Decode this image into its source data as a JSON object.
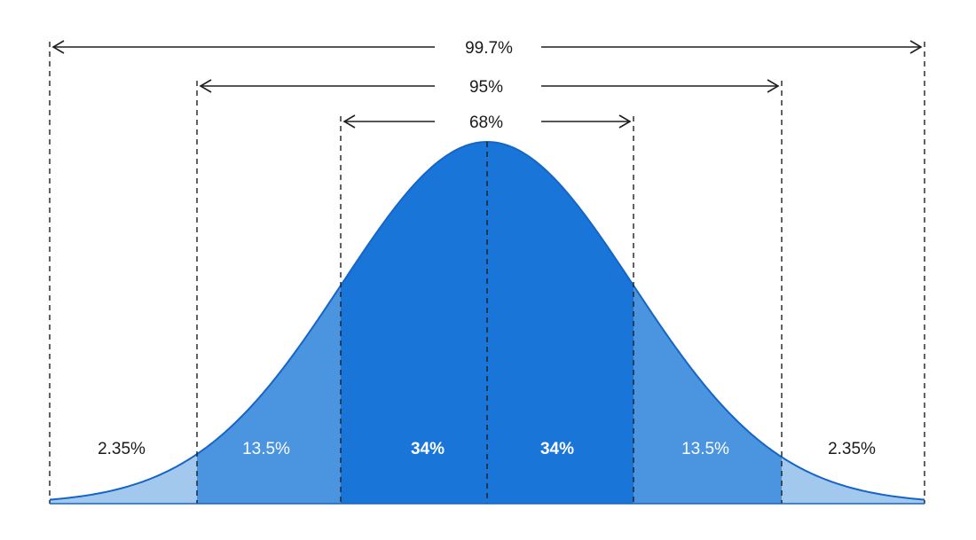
{
  "diagram": {
    "ranges": [
      {
        "label": "99.7%"
      },
      {
        "label": "95%"
      },
      {
        "label": "68%"
      }
    ],
    "segments": [
      {
        "label": "2.35%"
      },
      {
        "label": "13.5%"
      },
      {
        "label": "34%"
      },
      {
        "label": "34%"
      },
      {
        "label": "13.5%"
      },
      {
        "label": "2.35%"
      }
    ],
    "colors": {
      "center": "#1976d8",
      "middle": "#4a94e0",
      "tail": "#a3c8ee",
      "curve_stroke": "#1565c8"
    }
  }
}
